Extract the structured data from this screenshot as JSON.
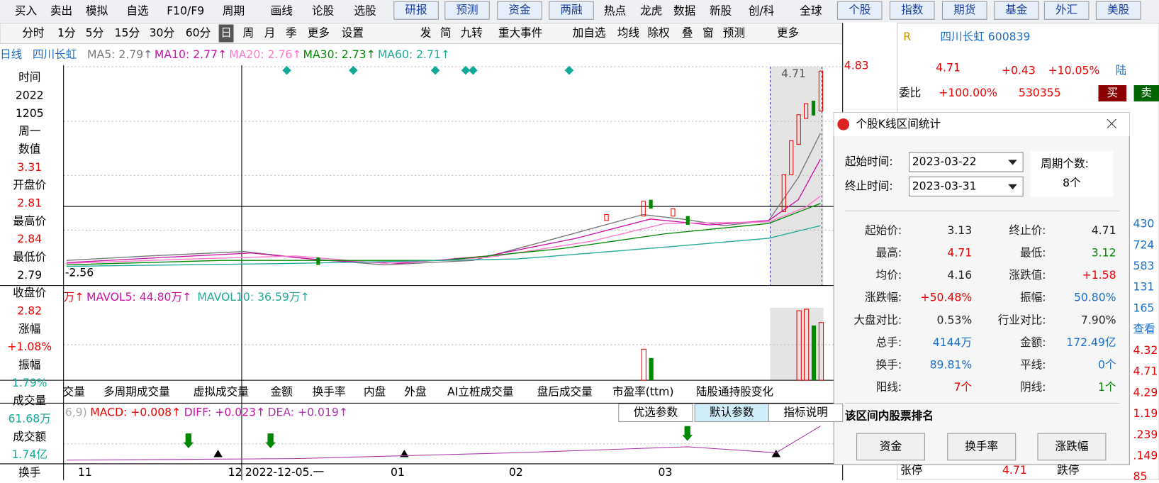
{
  "top_menu": [
    "买入",
    "卖出",
    "模拟",
    "自选",
    "F10/F9",
    "周期",
    "画线",
    "论股",
    "选股",
    "研报",
    "预测",
    "资金",
    "两融",
    "热点",
    "龙虎",
    "数据",
    "新股",
    "创/科",
    "全球",
    "个股",
    "指数",
    "期货",
    "基金",
    "外汇",
    "美股"
  ],
  "period_bar": [
    "分时",
    "1分",
    "5分",
    "15分",
    "30分",
    "60分",
    "日",
    "周",
    "月",
    "季",
    "更多",
    "设置"
  ],
  "tool_bar": [
    "发",
    "简",
    "九转",
    "重大事件",
    "加自选",
    "均线",
    "除权",
    "叠",
    "窗",
    "预测",
    "更多"
  ],
  "ma_legend": [
    "日线",
    "四川长虹",
    "MA5: 2.79↑",
    "MA10: 2.77↑",
    "MA20: 2.76↑",
    "MA30: 2.73↑",
    "MA60: 2.71↑"
  ],
  "info_panel": [
    [
      "时间",
      "2022",
      "1205",
      "周一"
    ],
    [
      "数值",
      "3.31"
    ],
    [
      "开盘价",
      "2.81"
    ],
    [
      "最高价",
      "2.84"
    ],
    [
      "最低价",
      "2.79"
    ],
    [
      "收盘价",
      "2.82"
    ],
    [
      "涨幅",
      "+1.08%"
    ],
    [
      "振幅",
      "1.79%"
    ],
    [
      "成交量",
      "61.68万"
    ],
    [
      "成交额",
      "1.74亿"
    ],
    [
      "换手"
    ]
  ],
  "price_axis": {
    "top": "4.83",
    "low": "-2.56",
    "last": "4.71"
  },
  "volume_legend": [
    "万↑",
    "MAVOL5: 44.80万↑",
    "MAVOL10: 36.59万↑"
  ],
  "volume_tabs": [
    "交量",
    "多周期成交量",
    "虚拟成交量",
    "金额",
    "换手率",
    "内盘",
    "外盘",
    "AI立桩成交量",
    "盘后成交量",
    "市盈率(ttm)",
    "陆股通持股变化"
  ],
  "macd_legend": [
    "6,9)",
    "MACD: +0.008↑",
    "DIFF: +0.023↑",
    "DEA: +0.019↑"
  ],
  "macd_buttons": [
    "优选参数",
    "默认参数",
    "指标说明"
  ],
  "x_axis": [
    "11",
    "12",
    "2022-12-05.一",
    "01",
    "02",
    "03"
  ],
  "quote": {
    "mark": "R",
    "name": "四川长虹 600839",
    "price": "4.71",
    "change": "+0.43",
    "pct": "+10.05%",
    "tag": "陆",
    "ratio_label": "委比",
    "ratio": "+100.00%",
    "ratio_vol": "530355",
    "buy": "买",
    "sell": "卖",
    "side": [
      "430",
      "724",
      "583",
      "131",
      "165",
      "查看",
      "4.32",
      "4.71",
      "4.29",
      "1.19",
      ".239",
      ".149",
      "85"
    ],
    "limit_up": "张停",
    "limit_up_price": "4.71",
    "limit_down": "跌停"
  },
  "dialog": {
    "title": "个股K线区间统计",
    "start_label": "起始时间:",
    "start": "2023-03-22",
    "end_label": "终止时间:",
    "end": "2023-03-31",
    "period_label": "周期个数:",
    "period": "8个",
    "stats": [
      [
        "起始价:",
        "3.13",
        "终止价:",
        "4.71"
      ],
      [
        "最高:",
        "4.71",
        "最低:",
        "3.12"
      ],
      [
        "均价:",
        "4.16",
        "涨跌值:",
        "+1.58"
      ],
      [
        "涨跌幅:",
        "+50.48%",
        "振幅:",
        "50.80%"
      ],
      [
        "大盘对比:",
        "0.53%",
        "行业对比:",
        "7.90%"
      ],
      [
        "总手:",
        "4144万",
        "金额:",
        "172.49亿"
      ],
      [
        "换手:",
        "89.81%",
        "平线:",
        "0个"
      ],
      [
        "阳线:",
        "7个",
        "阴线:",
        "1个"
      ]
    ],
    "rank_title": "该区间内股票排名",
    "buttons": [
      "资金",
      "换手率",
      "涨跌幅"
    ]
  }
}
